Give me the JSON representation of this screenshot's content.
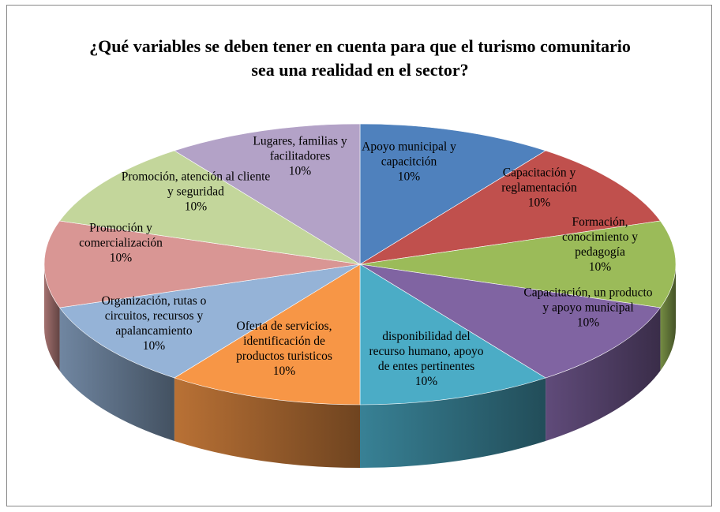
{
  "chart_data": {
    "type": "pie3d",
    "title": "¿Qué variables se deben tener en cuenta para que el turismo comunitario sea una realidad en el sector?",
    "categories": [
      "Apoyo municipal  y capacitción",
      "Capacitación y reglamentación",
      "Formación, conocimiento y pedagogía",
      "Capacitación, un producto y apoyo municipal",
      "disponibilidad del recurso humano, apoyo de entes pertinentes",
      "Oferta de servicios, identificación de productos turisticos",
      "Organización, rutas o circuitos, recursos y apalancamiento",
      "Promoción y comercialización",
      "Promoción, atención al cliente y seguridad",
      "Lugares, familias y facilitadores"
    ],
    "values": [
      10,
      10,
      10,
      10,
      10,
      10,
      10,
      10,
      10,
      10
    ],
    "value_labels": [
      "10%",
      "10%",
      "10%",
      "10%",
      "10%",
      "10%",
      "10%",
      "10%",
      "10%",
      "10%"
    ],
    "colors": [
      "#4f81bd",
      "#c0504d",
      "#9bbb59",
      "#8064a2",
      "#4bacc6",
      "#f79646",
      "#95b3d7",
      "#d99694",
      "#c3d69b",
      "#b3a2c7"
    ]
  }
}
